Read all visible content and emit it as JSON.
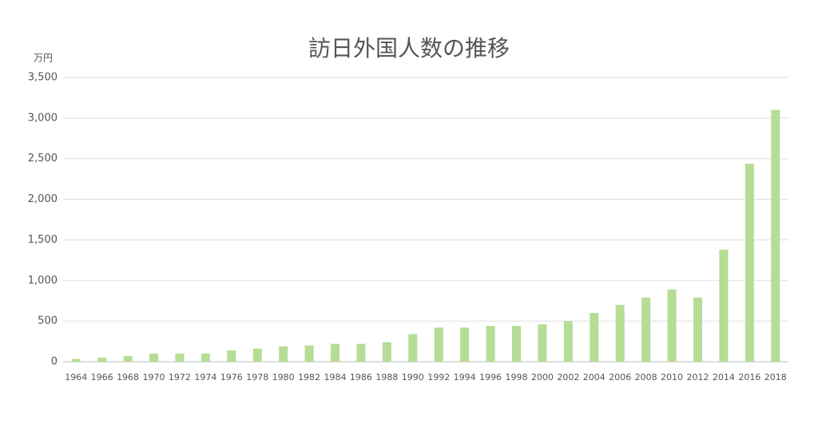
{
  "chart_data": {
    "type": "bar",
    "title": "訪日外国人数の推移",
    "y_unit_label": "万円",
    "categories": [
      "1964",
      "1966",
      "1968",
      "1970",
      "1972",
      "1974",
      "1976",
      "1978",
      "1980",
      "1982",
      "1984",
      "1986",
      "1988",
      "1990",
      "1992",
      "1994",
      "1996",
      "1998",
      "2000",
      "2002",
      "2004",
      "2006",
      "2008",
      "2010",
      "2012",
      "2014",
      "2016",
      "2018"
    ],
    "values": [
      35,
      50,
      70,
      100,
      100,
      100,
      140,
      160,
      190,
      200,
      220,
      220,
      240,
      340,
      420,
      420,
      440,
      440,
      460,
      500,
      600,
      700,
      790,
      890,
      790,
      1380,
      2440,
      3100
    ],
    "color": "#b5dd95",
    "ylim": [
      0,
      3500
    ],
    "yticks": [
      0,
      500,
      {
        "value": 1000,
        "label": "1,000"
      },
      {
        "value": 1500,
        "label": "1,500"
      },
      {
        "value": 2000,
        "label": "2,000"
      },
      {
        "value": 2500,
        "label": "2,500"
      },
      {
        "value": 3000,
        "label": "3,000"
      },
      {
        "value": 3500,
        "label": "3,500"
      }
    ],
    "grid": true
  }
}
